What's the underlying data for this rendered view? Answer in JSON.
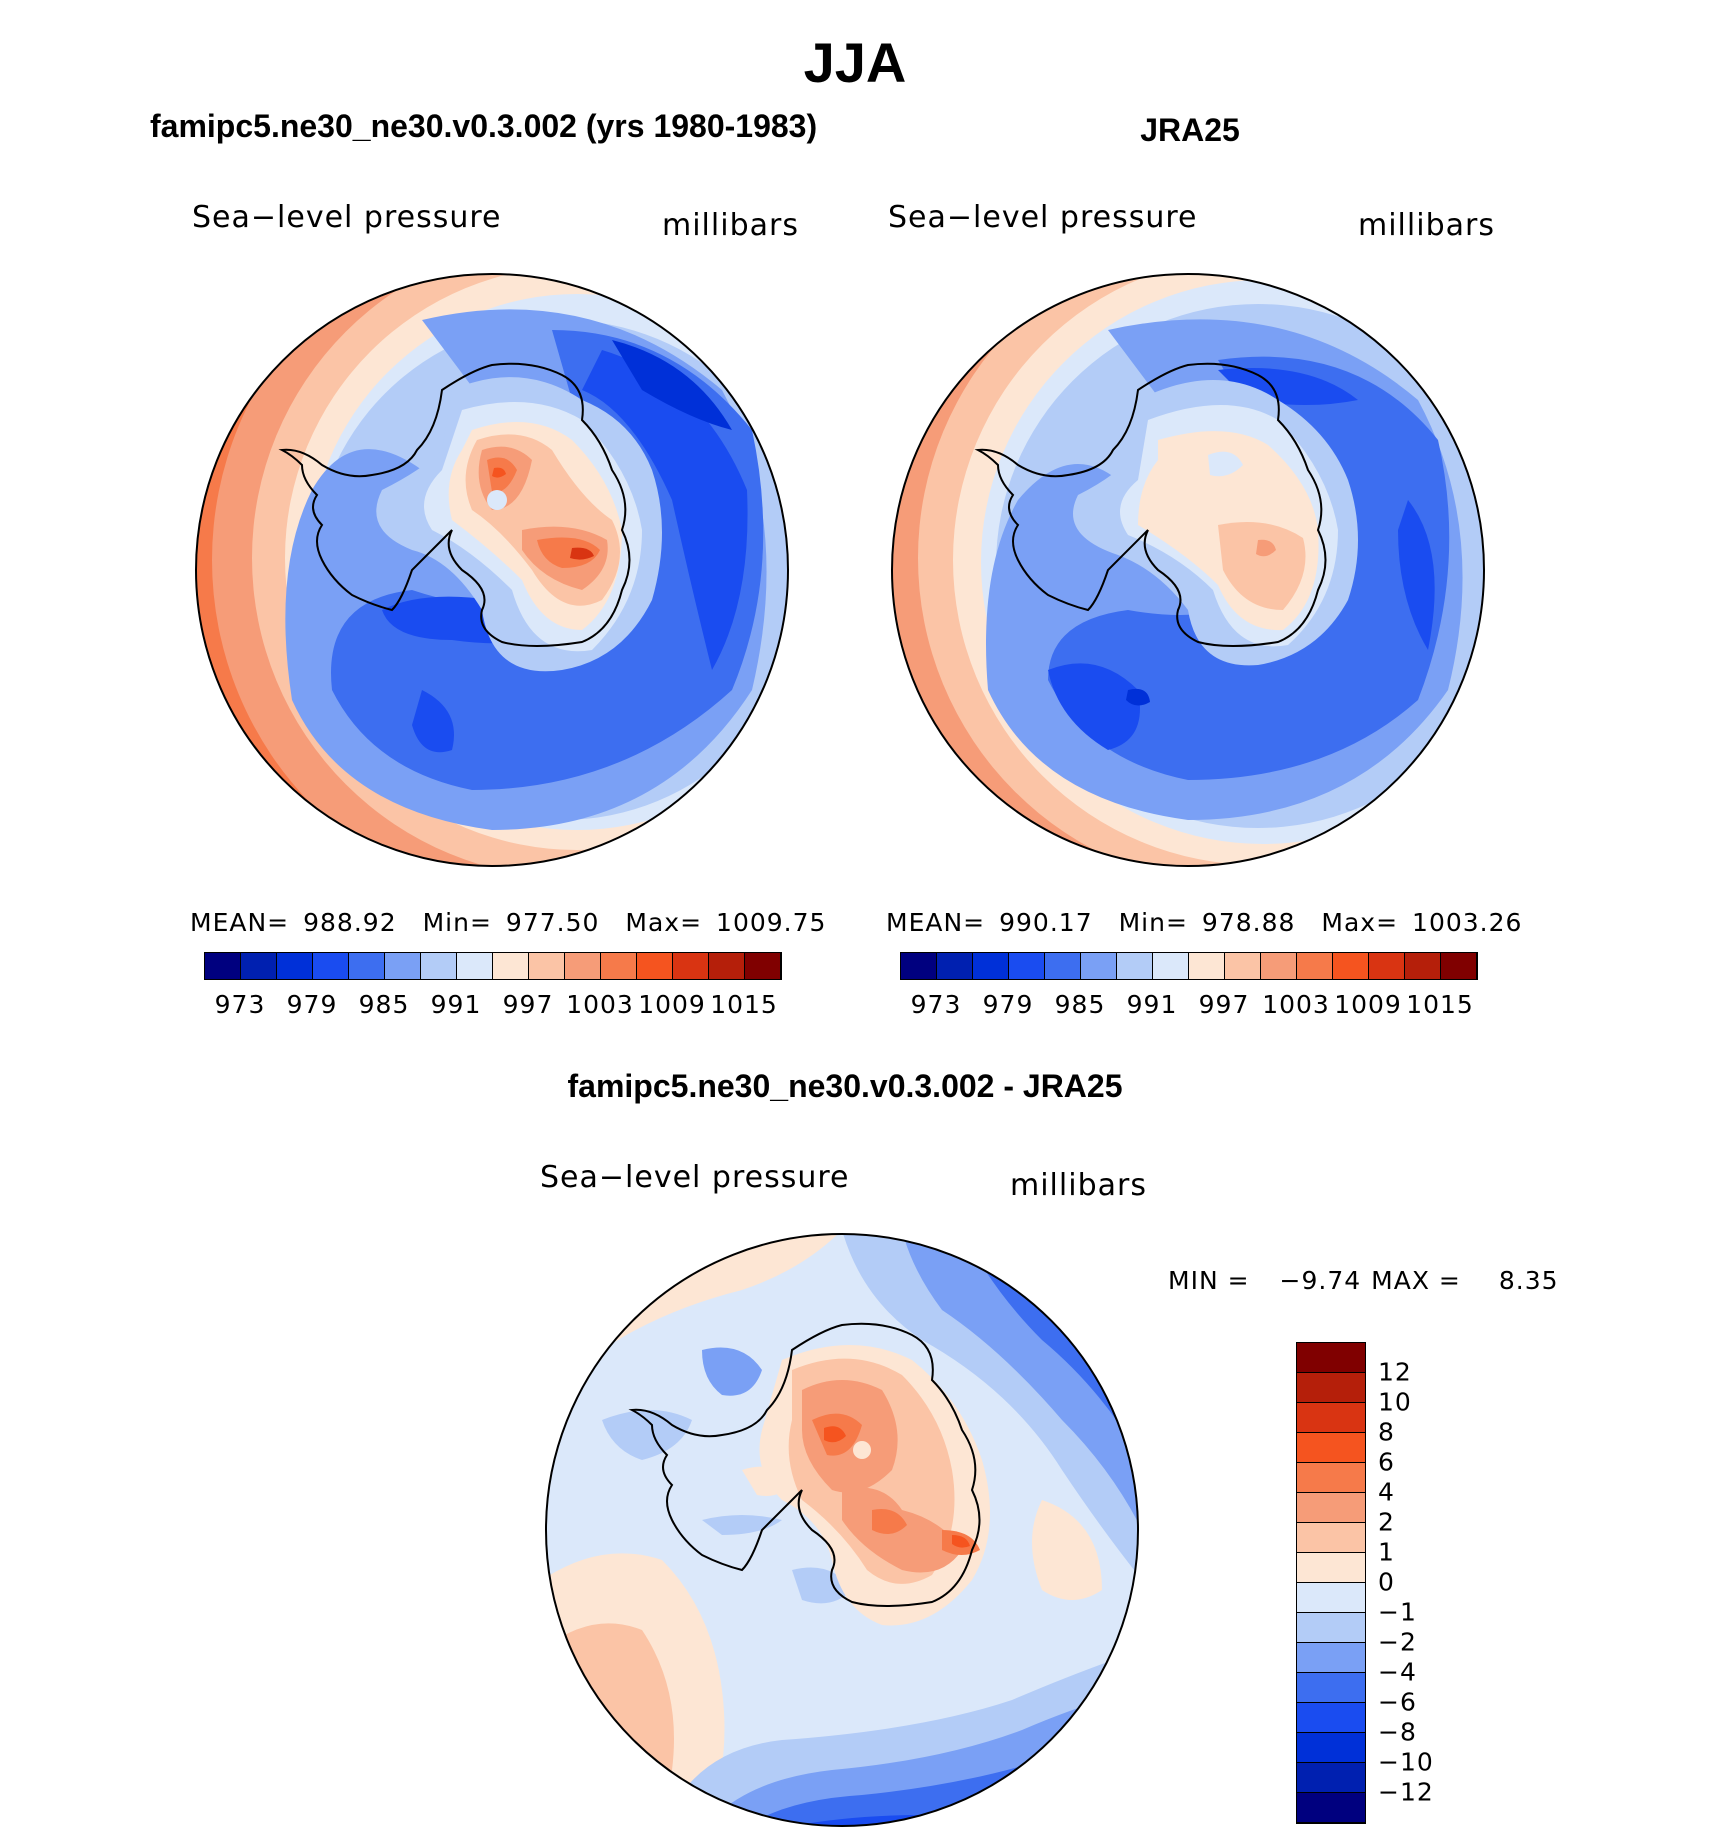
{
  "title": "JJA",
  "panels": [
    {
      "heading": "famipc5.ne30_ne30.v0.3.002 (yrs 1980-1983)",
      "variable": "Sea−level pressure",
      "units": "millibars",
      "stats": {
        "mean_label": "MEAN=",
        "mean": "988.92",
        "min_label": "Min=",
        "min": "977.50",
        "max_label": "Max=",
        "max": "1009.75"
      },
      "colorbar_labels": [
        "973",
        "979",
        "985",
        "991",
        "997",
        "1003",
        "1009",
        "1015"
      ]
    },
    {
      "heading": "JRA25",
      "variable": "Sea−level pressure",
      "units": "millibars",
      "stats": {
        "mean_label": "MEAN=",
        "mean": "990.17",
        "min_label": "Min=",
        "min": "978.88",
        "max_label": "Max=",
        "max": "1003.26"
      },
      "colorbar_labels": [
        "973",
        "979",
        "985",
        "991",
        "997",
        "1003",
        "1009",
        "1015"
      ]
    }
  ],
  "difference": {
    "heading": "famipc5.ne30_ne30.v0.3.002 - JRA25",
    "variable": "Sea−level pressure",
    "units": "millibars",
    "min_label": "MIN =",
    "min": "−9.74",
    "max_label": "MAX =",
    "max": "8.35",
    "colorbar_labels": [
      "12",
      "10",
      "8",
      "6",
      "4",
      "2",
      "1",
      "0",
      "−1",
      "−2",
      "−4",
      "−6",
      "−8",
      "−10",
      "−12"
    ]
  },
  "colors": {
    "sequential_palette": [
      "#00007f",
      "#0020b0",
      "#0030d8",
      "#1a4cf0",
      "#3d6ef0",
      "#7aa0f5",
      "#b3ccf7",
      "#dbe8fa",
      "#fde6d4",
      "#fbc4a6",
      "#f69c78",
      "#f67a4a",
      "#f5541f",
      "#d93412",
      "#b51f0a",
      "#800000"
    ],
    "difference_palette": [
      "#800000",
      "#b51f0a",
      "#d93412",
      "#f5541f",
      "#f67a4a",
      "#f69c78",
      "#fbc4a6",
      "#fde6d4",
      "#dbe8fa",
      "#b3ccf7",
      "#7aa0f5",
      "#3d6ef0",
      "#1a4cf0",
      "#0030d8",
      "#0020b0",
      "#00007f"
    ]
  }
}
